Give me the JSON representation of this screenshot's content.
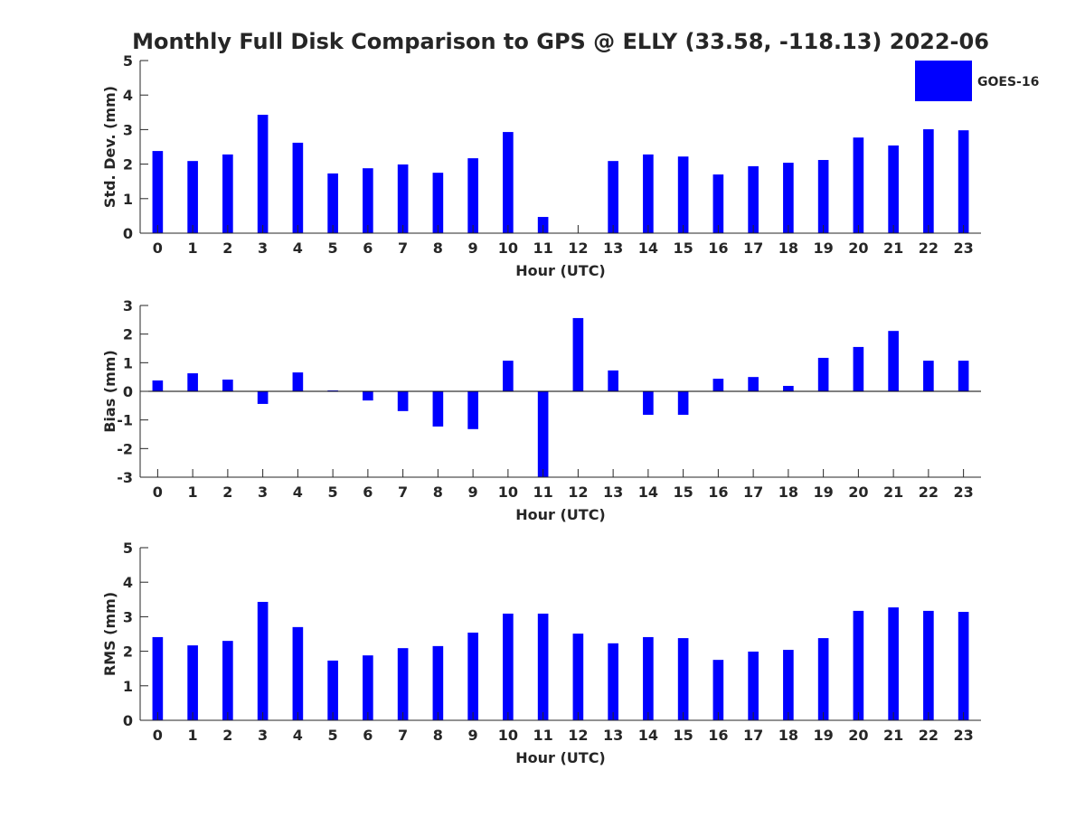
{
  "chart_data": [
    {
      "type": "bar",
      "title": "Monthly Full Disk Comparison to GPS @ ELLY (33.58, -118.13) 2022-06",
      "xlabel": "Hour (UTC)",
      "ylabel": "Std. Dev. (mm)",
      "ylim": [
        0,
        5
      ],
      "yticks": [
        0,
        1,
        2,
        3,
        4,
        5
      ],
      "categories": [
        0,
        1,
        2,
        3,
        4,
        5,
        6,
        7,
        8,
        9,
        10,
        11,
        12,
        13,
        14,
        15,
        16,
        17,
        18,
        19,
        20,
        21,
        22,
        23
      ],
      "series": [
        {
          "name": "GOES-16",
          "color": "#0000ff",
          "values": [
            2.38,
            2.09,
            2.28,
            3.43,
            2.62,
            1.73,
            1.88,
            1.99,
            1.75,
            2.17,
            2.93,
            0.47,
            0,
            2.09,
            2.28,
            2.22,
            1.7,
            1.94,
            2.04,
            2.12,
            2.77,
            2.54,
            3.01,
            2.98
          ]
        }
      ],
      "legend": {
        "entries": [
          "GOES-16"
        ],
        "placement": "top-right"
      }
    },
    {
      "type": "bar",
      "xlabel": "Hour (UTC)",
      "ylabel": "Bias (mm)",
      "ylim": [
        -3,
        3
      ],
      "yticks": [
        -3,
        -2,
        -1,
        0,
        1,
        2,
        3
      ],
      "categories": [
        0,
        1,
        2,
        3,
        4,
        5,
        6,
        7,
        8,
        9,
        10,
        11,
        12,
        13,
        14,
        15,
        16,
        17,
        18,
        19,
        20,
        21,
        22,
        23
      ],
      "series": [
        {
          "name": "GOES-16",
          "color": "#0000ff",
          "values": [
            0.38,
            0.63,
            0.41,
            -0.44,
            0.66,
            0.03,
            -0.32,
            -0.69,
            -1.23,
            -1.32,
            1.07,
            -3.2,
            2.56,
            0.73,
            -0.82,
            -0.82,
            0.44,
            0.5,
            0.19,
            1.17,
            1.55,
            2.11,
            1.07,
            1.07
          ]
        }
      ]
    },
    {
      "type": "bar",
      "xlabel": "Hour (UTC)",
      "ylabel": "RMS (mm)",
      "ylim": [
        0,
        5
      ],
      "yticks": [
        0,
        1,
        2,
        3,
        4,
        5
      ],
      "categories": [
        0,
        1,
        2,
        3,
        4,
        5,
        6,
        7,
        8,
        9,
        10,
        11,
        12,
        13,
        14,
        15,
        16,
        17,
        18,
        19,
        20,
        21,
        22,
        23
      ],
      "series": [
        {
          "name": "GOES-16",
          "color": "#0000ff",
          "values": [
            2.41,
            2.17,
            2.3,
            3.43,
            2.7,
            1.73,
            1.88,
            2.09,
            2.15,
            2.54,
            3.09,
            3.09,
            2.51,
            2.23,
            2.41,
            2.38,
            1.75,
            1.99,
            2.04,
            2.38,
            3.17,
            3.27,
            3.17,
            3.14
          ]
        }
      ]
    }
  ]
}
